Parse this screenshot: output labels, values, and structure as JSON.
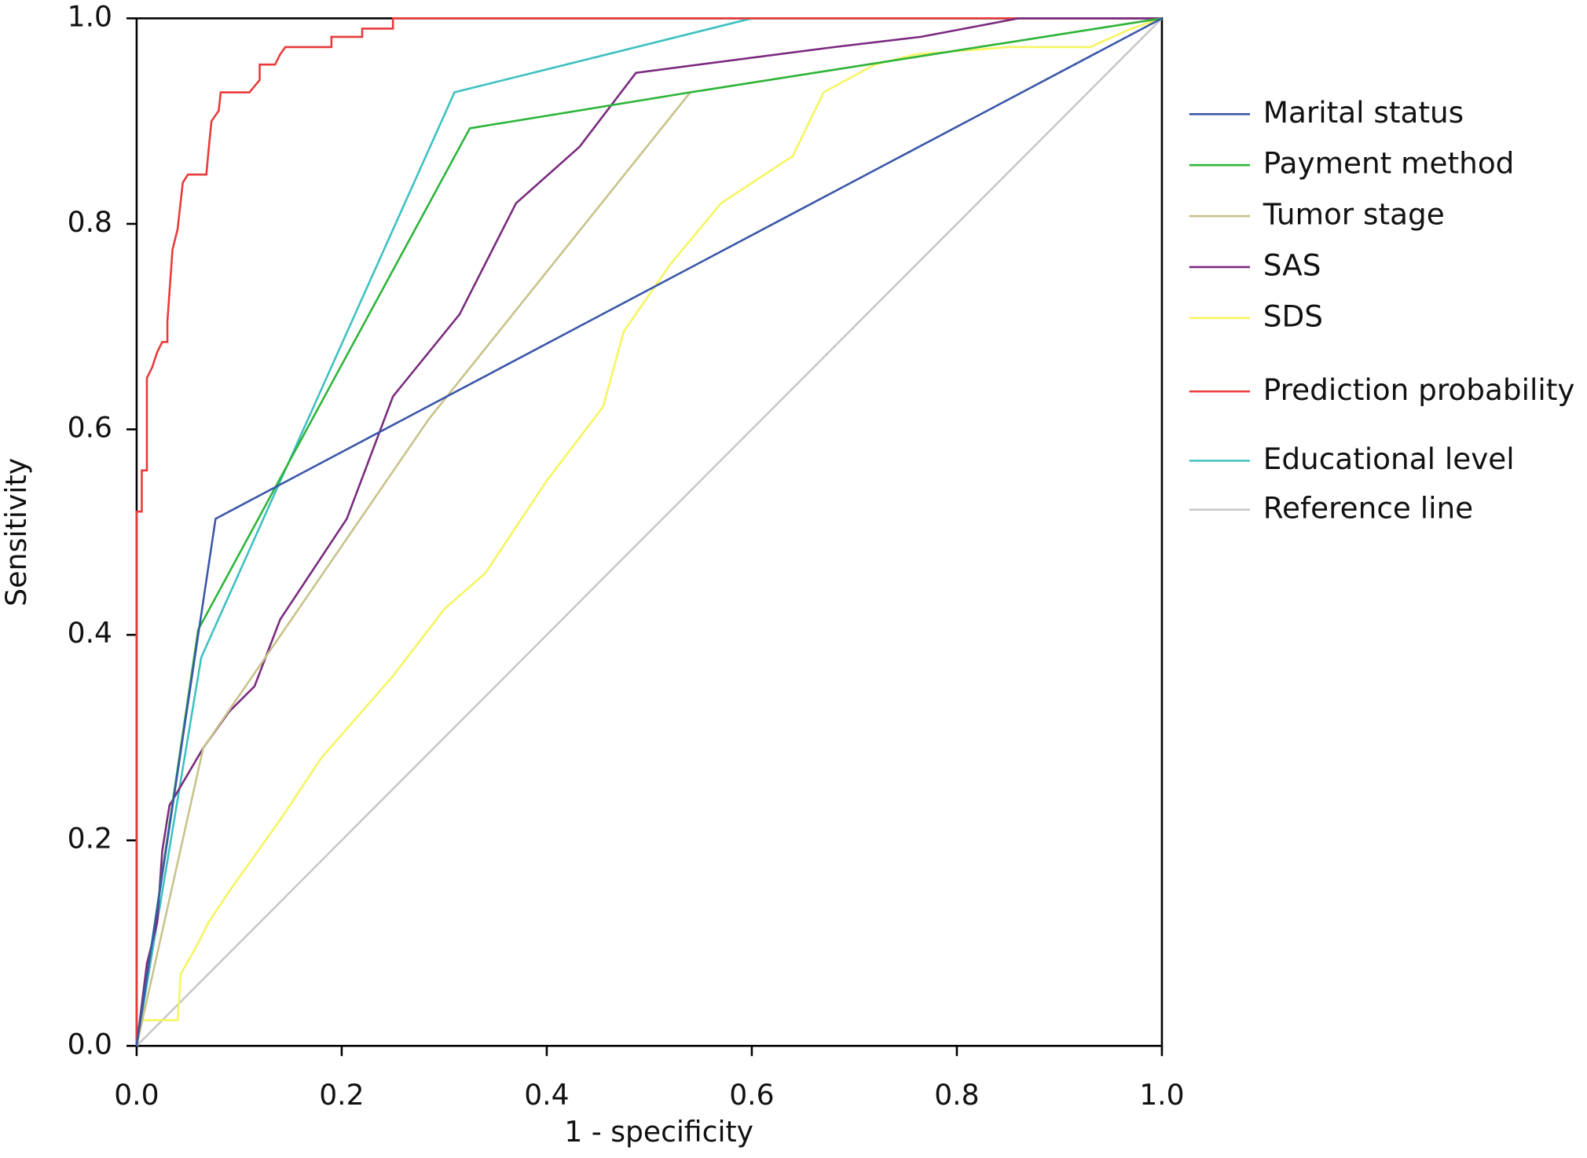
{
  "chart_data": {
    "type": "line",
    "xlabel": "1 - specificity",
    "ylabel": "Sensitivity",
    "xlim": [
      0,
      1
    ],
    "ylim": [
      0,
      1
    ],
    "xticks": [
      {
        "value": 0,
        "label": "0.0"
      },
      0.2,
      0.4,
      0.6,
      0.8,
      {
        "value": 1,
        "label": "1.0"
      }
    ],
    "yticks": [
      {
        "value": 0,
        "label": "0.0"
      },
      0.2,
      0.4,
      0.6,
      0.8,
      {
        "value": 1,
        "label": "1.0"
      }
    ],
    "legend": "right",
    "series": [
      {
        "name": "Marital status",
        "color": "#3a57a8",
        "x": [
          0,
          0.077,
          1
        ],
        "values": [
          0,
          0.513,
          1
        ]
      },
      {
        "name": "Payment method",
        "color": "#2db53a",
        "x": [
          0,
          0.06,
          0.325,
          0.54,
          1
        ],
        "values": [
          0,
          0.405,
          0.893,
          0.928,
          1
        ]
      },
      {
        "name": "Tumor stage",
        "color": "#c8c28a",
        "x": [
          0,
          0.065,
          0.285,
          0.54,
          1
        ],
        "values": [
          0,
          0.29,
          0.61,
          0.928,
          1
        ]
      },
      {
        "name": "SAS",
        "color": "#7a2a7e",
        "x": [
          0,
          0.005,
          0.01,
          0.02,
          0.025,
          0.032,
          0.065,
          0.09,
          0.115,
          0.14,
          0.205,
          0.25,
          0.315,
          0.37,
          0.432,
          0.487,
          0.68,
          0.765,
          0.86,
          1
        ],
        "values": [
          0,
          0.04,
          0.08,
          0.12,
          0.19,
          0.234,
          0.29,
          0.325,
          0.35,
          0.415,
          0.513,
          0.632,
          0.712,
          0.82,
          0.875,
          0.947,
          0.972,
          0.982,
          1,
          1
        ]
      },
      {
        "name": "SDS",
        "color": "#f5f560",
        "x": [
          0,
          0.005,
          0.04,
          0.043,
          0.06,
          0.07,
          0.09,
          0.14,
          0.18,
          0.25,
          0.3,
          0.34,
          0.4,
          0.455,
          0.475,
          0.52,
          0.57,
          0.64,
          0.67,
          0.72,
          0.76,
          0.85,
          0.93,
          0.97,
          1
        ],
        "values": [
          0,
          0.025,
          0.025,
          0.07,
          0.1,
          0.12,
          0.15,
          0.22,
          0.28,
          0.36,
          0.425,
          0.46,
          0.55,
          0.622,
          0.695,
          0.76,
          0.82,
          0.866,
          0.928,
          0.955,
          0.965,
          0.972,
          0.972,
          0.99,
          1
        ]
      },
      {
        "name": "Prediction probability",
        "color": "#e83a3a",
        "x": [
          0,
          0,
          0.005,
          0.005,
          0.01,
          0.01,
          0.015,
          0.02,
          0.025,
          0.03,
          0.03,
          0.035,
          0.04,
          0.045,
          0.05,
          0.068,
          0.07,
          0.073,
          0.08,
          0.082,
          0.11,
          0.12,
          0.12,
          0.135,
          0.14,
          0.145,
          0.19,
          0.19,
          0.22,
          0.22,
          0.25,
          0.25,
          1
        ],
        "values": [
          0,
          0.52,
          0.52,
          0.56,
          0.56,
          0.65,
          0.66,
          0.675,
          0.685,
          0.685,
          0.705,
          0.775,
          0.795,
          0.84,
          0.848,
          0.848,
          0.87,
          0.9,
          0.91,
          0.928,
          0.928,
          0.94,
          0.955,
          0.955,
          0.965,
          0.972,
          0.972,
          0.982,
          0.982,
          0.99,
          0.99,
          1,
          1
        ]
      },
      {
        "name": "Educational level",
        "color": "#3ec0c0",
        "x": [
          0,
          0.063,
          0.31,
          0.6,
          1
        ],
        "values": [
          0,
          0.378,
          0.928,
          1,
          1
        ]
      },
      {
        "name": "Reference line",
        "color": "#c8c8c8",
        "x": [
          0,
          1
        ],
        "values": [
          0,
          1
        ]
      }
    ]
  }
}
